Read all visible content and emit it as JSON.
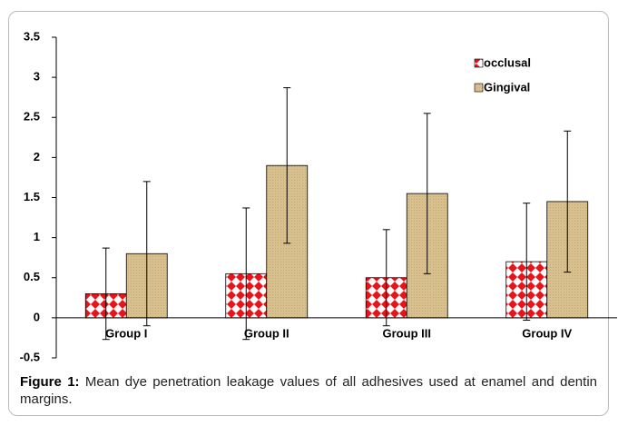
{
  "chart_data": {
    "type": "bar",
    "categories": [
      "Group I",
      "Group II",
      "Group III",
      "Group IV"
    ],
    "series": [
      {
        "name": "occlusal",
        "color": "#e8141c",
        "values": [
          0.3,
          0.55,
          0.5,
          0.7
        ],
        "errors": [
          0.57,
          0.82,
          0.6,
          0.73
        ]
      },
      {
        "name": "Gingival",
        "color": "#d8c08e",
        "values": [
          0.8,
          1.9,
          1.55,
          1.45
        ],
        "errors": [
          0.9,
          0.97,
          1.0,
          0.88
        ]
      }
    ],
    "ylim": [
      -0.5,
      3.5
    ],
    "yticks": [
      -0.5,
      0,
      0.5,
      1,
      1.5,
      2,
      2.5,
      3,
      3.5
    ],
    "grid": false,
    "legend": "top-right"
  },
  "caption": {
    "label": "Figure 1:",
    "text": "Mean dye penetration leakage values of all adhesives used at enamel and dentin margins."
  }
}
